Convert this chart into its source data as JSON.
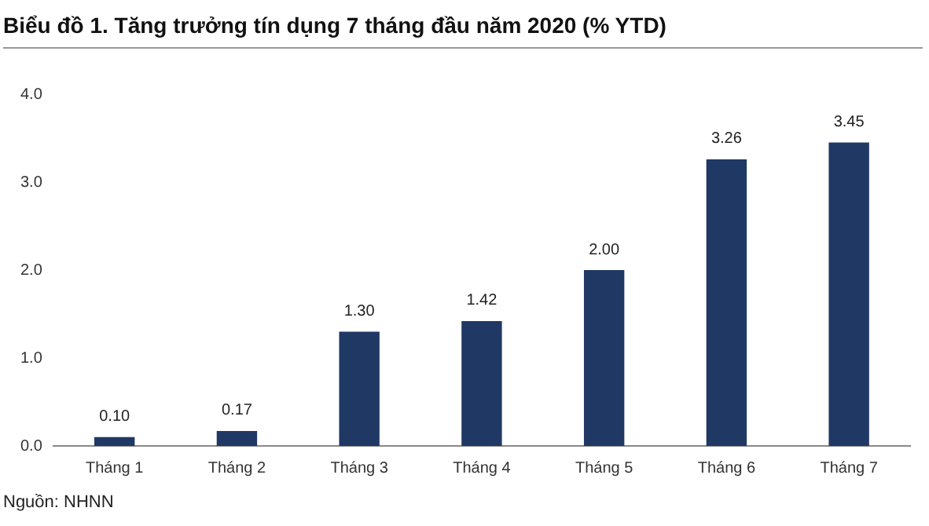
{
  "chart_data": {
    "type": "bar",
    "title": "Biểu đồ 1. Tăng trưởng tín dụng 7 tháng đầu năm 2020 (% YTD)",
    "categories": [
      "Tháng 1",
      "Tháng 2",
      "Tháng 3",
      "Tháng 4",
      "Tháng 5",
      "Tháng 6",
      "Tháng 7"
    ],
    "values": [
      0.1,
      0.17,
      1.3,
      1.42,
      2.0,
      3.26,
      3.45
    ],
    "value_labels": [
      "0.10",
      "0.17",
      "1.30",
      "1.42",
      "2.00",
      "3.26",
      "3.45"
    ],
    "color": "#1f3864",
    "ylim": [
      0,
      4
    ],
    "yticks": [
      {
        "value": 0,
        "label": "0.0"
      },
      {
        "value": 1,
        "label": "1.0"
      },
      {
        "value": 2,
        "label": "2.0"
      },
      {
        "value": 3,
        "label": "3.0"
      },
      {
        "value": 4,
        "label": "4.0"
      }
    ],
    "grid": false,
    "legend": false,
    "annotations": [
      "Nguồn: NHNN"
    ]
  }
}
